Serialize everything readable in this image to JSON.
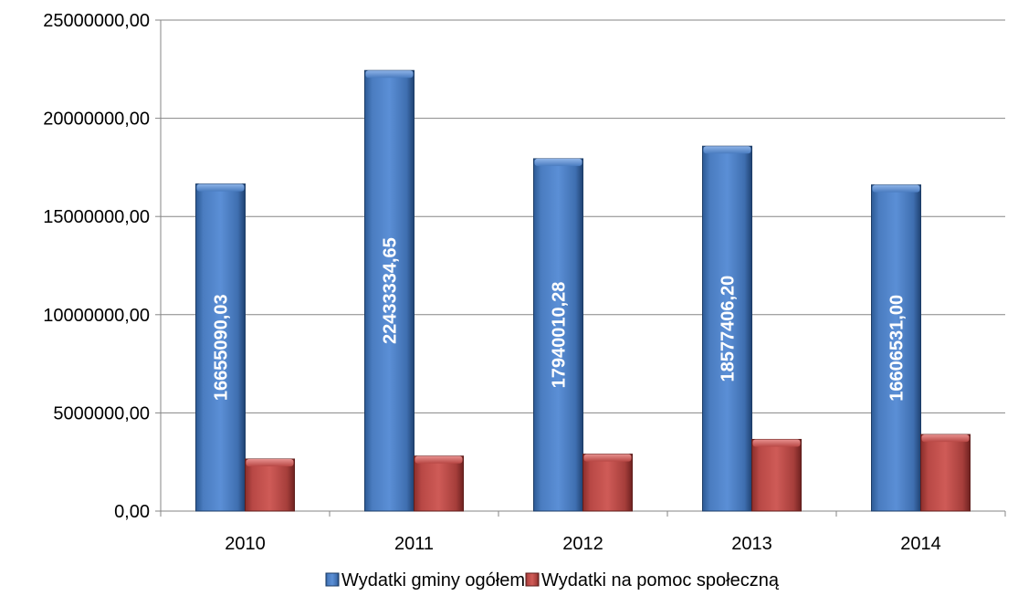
{
  "chart_data": {
    "type": "bar",
    "categories": [
      "2010",
      "2011",
      "2012",
      "2013",
      "2014"
    ],
    "series": [
      {
        "name": "Wydatki gminy ogółem",
        "values": [
          16655090.03,
          22433334.65,
          17940010.28,
          18577406.2,
          16606531.0
        ],
        "data_labels": [
          "16655090,03",
          "22433334,65",
          "17940010,28",
          "18577406,20",
          "16606531,00"
        ],
        "color": "#4F81BD"
      },
      {
        "name": "Wydatki na pomoc społeczną",
        "values": [
          2650000,
          2800000,
          2900000,
          3650000,
          3900000
        ],
        "color": "#C0504D"
      }
    ],
    "ylim": [
      0,
      25000000
    ],
    "yticks": [
      0,
      5000000,
      10000000,
      15000000,
      20000000,
      25000000
    ],
    "ytick_labels": [
      "0,00",
      "5000000,00",
      "10000000,00",
      "15000000,00",
      "20000000,00",
      "25000000,00"
    ],
    "grid": true,
    "legend_position": "bottom"
  }
}
